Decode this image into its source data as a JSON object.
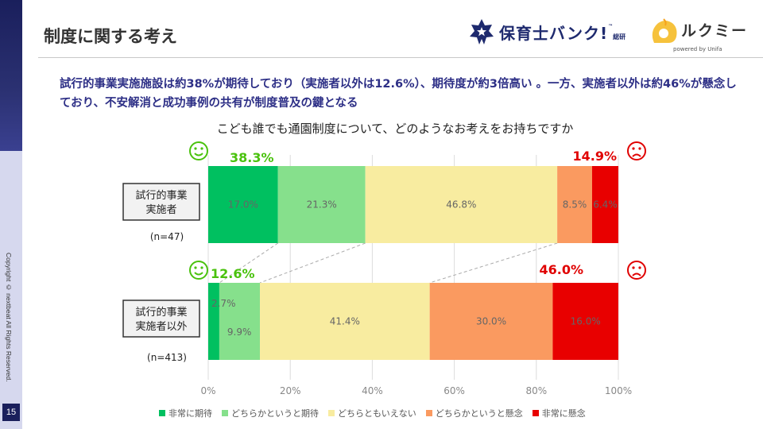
{
  "page": {
    "title": "制度に関する考え",
    "page_number": "15",
    "copyright": "Copyright © nextbeat All Rights Reserved.",
    "headline": "試行的事業実施施設は約38%が期待しており（実施者以外は12.6%）、期待度が約3倍高い 。一方、実施者以外は約46%が懸念しており、不安解消と成功事例の共有が制度普及の鍵となる",
    "logo_hoikushi": "保育士バンク!",
    "logo_hoikushi_sub": "総研",
    "logo_tm": "™",
    "logo_lukumi": "ルクミー",
    "logo_lukumi_sub": "powered by Unifa"
  },
  "chart_data": {
    "type": "bar",
    "orientation": "horizontal-stacked-100",
    "title": "こども誰でも通園制度について、どのようなお考えをお持ちですか",
    "categories": [
      "試行的事業実施者",
      "試行的事業実施者以外"
    ],
    "category_lines": [
      [
        "試行的事業",
        "実施者"
      ],
      [
        "試行的事業",
        "実施者以外"
      ]
    ],
    "sample_sizes": [
      "(n=47)",
      "(n=413)"
    ],
    "series": [
      {
        "name": "非常に期待",
        "color": "#00c060",
        "values": [
          17.0,
          2.7
        ],
        "labels": [
          "17.0%",
          "2.7%"
        ]
      },
      {
        "name": "どちらかというと期待",
        "color": "#86e08c",
        "values": [
          21.3,
          9.9
        ],
        "labels": [
          "21.3%",
          "9.9%"
        ]
      },
      {
        "name": "どちらともいえない",
        "color": "#f8eca0",
        "values": [
          46.8,
          41.4
        ],
        "labels": [
          "46.8%",
          "41.4%"
        ]
      },
      {
        "name": "どちらかというと懸念",
        "color": "#fa9a60",
        "values": [
          8.5,
          30.0
        ],
        "labels": [
          "8.5%",
          "30.0%"
        ]
      },
      {
        "name": "非常に懸念",
        "color": "#e80000",
        "values": [
          6.4,
          16.0
        ],
        "labels": [
          "6.4%",
          "16.0%"
        ]
      }
    ],
    "positive_totals": [
      "38.3%",
      "12.6%"
    ],
    "negative_totals": [
      "14.9%",
      "46.0%"
    ],
    "positive_color": "#4ac20e",
    "negative_color": "#e00000",
    "xlim": [
      0,
      100
    ],
    "xticks": [
      "0%",
      "20%",
      "40%",
      "60%",
      "80%",
      "100%"
    ],
    "grid": true,
    "legend_position": "bottom",
    "icons": {
      "positive": "smile-face-icon",
      "negative": "frown-face-icon"
    }
  }
}
